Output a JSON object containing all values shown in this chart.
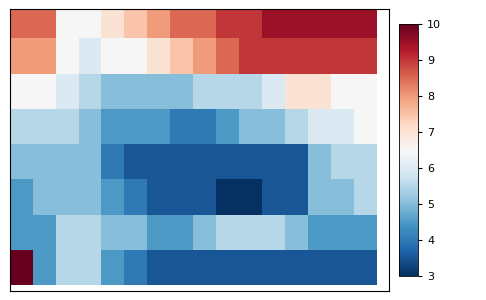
{
  "lon_min": -20.0,
  "lon_max": 42.0,
  "lat_min": 20.0,
  "lat_max": 50.0,
  "lon_res": 3.75,
  "lat_res": 3.75,
  "vmin": 3,
  "vmax": 10,
  "cmap": "RdBu_r",
  "colorbar_ticks": [
    3,
    4,
    5,
    6,
    7,
    8,
    9,
    10
  ],
  "grid_data": [
    [
      8.5,
      8.5,
      6.5,
      6.5,
      7.0,
      7.5,
      8.0,
      8.5,
      8.5,
      9.0,
      9.0,
      9.5,
      9.5,
      9.5,
      9.5,
      9.5
    ],
    [
      8.0,
      8.0,
      6.5,
      6.0,
      6.5,
      6.5,
      7.0,
      7.5,
      8.0,
      8.5,
      9.0,
      9.0,
      9.0,
      9.0,
      9.0,
      9.0
    ],
    [
      6.5,
      6.5,
      6.0,
      5.5,
      5.0,
      5.0,
      5.0,
      5.0,
      5.5,
      5.5,
      5.5,
      6.0,
      7.0,
      7.0,
      6.5,
      6.5
    ],
    [
      5.5,
      5.5,
      5.5,
      5.0,
      4.5,
      4.5,
      4.5,
      4.0,
      4.0,
      4.5,
      5.0,
      5.0,
      5.5,
      6.0,
      6.0,
      6.5
    ],
    [
      5.0,
      5.0,
      5.0,
      5.0,
      4.0,
      3.5,
      3.5,
      3.5,
      3.5,
      3.5,
      3.5,
      3.5,
      3.5,
      5.0,
      5.5,
      5.5
    ],
    [
      4.5,
      5.0,
      5.0,
      5.0,
      4.5,
      4.0,
      3.5,
      3.5,
      3.5,
      3.0,
      3.0,
      3.5,
      3.5,
      5.0,
      5.0,
      5.5
    ],
    [
      4.5,
      4.5,
      5.5,
      5.5,
      5.0,
      5.0,
      4.5,
      4.5,
      5.0,
      5.5,
      5.5,
      5.5,
      5.0,
      4.5,
      4.5,
      4.5
    ],
    [
      10.0,
      4.5,
      5.5,
      5.5,
      4.5,
      4.0,
      3.5,
      3.5,
      3.5,
      3.5,
      3.5,
      3.5,
      3.5,
      3.5,
      3.5,
      3.5
    ]
  ],
  "lons": [
    -18.125,
    -14.375,
    -10.625,
    -6.875,
    -3.125,
    0.625,
    4.375,
    8.125,
    11.875,
    15.625,
    19.375,
    23.125,
    26.875,
    30.625,
    34.375,
    38.125
  ],
  "lats": [
    48.75,
    45.0,
    41.25,
    37.5,
    33.75,
    30.0,
    26.25,
    22.5
  ],
  "bg_color": "#f0f0f0",
  "border_color": "black",
  "border_lw": 0.5
}
